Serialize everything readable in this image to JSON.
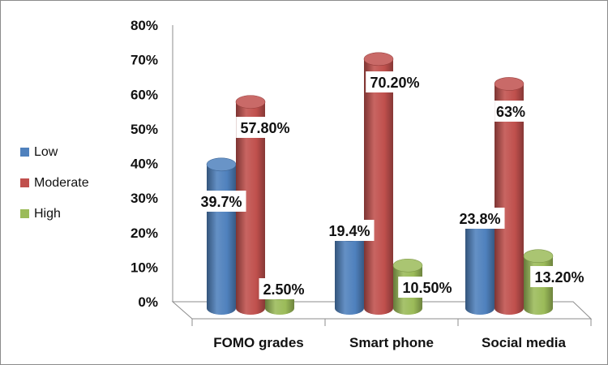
{
  "chart_data": {
    "type": "bar",
    "title": "",
    "xlabel": "",
    "ylabel": "",
    "ylim": [
      0,
      80
    ],
    "y_ticks": [
      "0%",
      "10%",
      "20%",
      "30%",
      "40%",
      "50%",
      "60%",
      "70%",
      "80%"
    ],
    "y_tick_values": [
      0,
      10,
      20,
      30,
      40,
      50,
      60,
      70,
      80
    ],
    "categories": [
      "FOMO grades",
      "Smart phone",
      "Social media"
    ],
    "series": [
      {
        "name": "Low",
        "color": "#4f81bd",
        "values": [
          39.7,
          19.4,
          23.8
        ],
        "labels": [
          "39.7%",
          "19.4%",
          "23.8%"
        ]
      },
      {
        "name": "Moderate",
        "color": "#c0504d",
        "values": [
          57.8,
          70.2,
          63
        ],
        "labels": [
          "57.80%",
          "70.20%",
          "63%"
        ]
      },
      {
        "name": "High",
        "color": "#9bbb59",
        "values": [
          2.5,
          10.5,
          13.2
        ],
        "labels": [
          "2.50%",
          "10.50%",
          "13.20%"
        ]
      }
    ],
    "legend_position": "left",
    "grid": false,
    "style": "3d-cylinder"
  }
}
